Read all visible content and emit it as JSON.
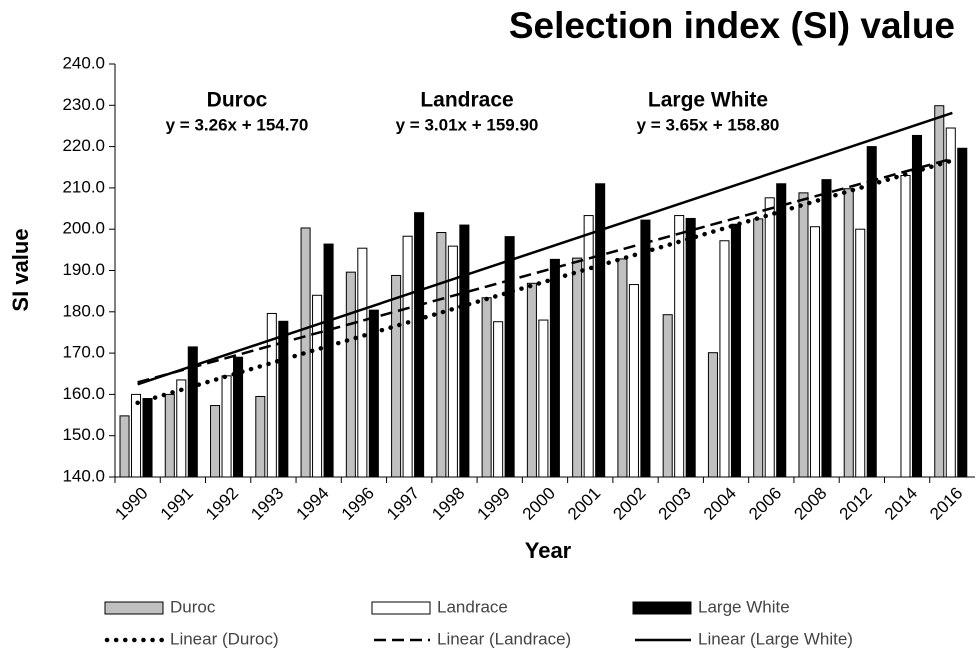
{
  "chart_data": {
    "type": "bar",
    "title": "Selection index (SI) value",
    "x_label": "Year",
    "y_label": "SI value",
    "categories": [
      "1990",
      "1991",
      "1992",
      "1993",
      "1994",
      "1996",
      "1997",
      "1998",
      "1999",
      "2000",
      "2001",
      "2002",
      "2003",
      "2004",
      "2006",
      "2008",
      "2012",
      "2014",
      "2016"
    ],
    "series": [
      {
        "name": "Duroc",
        "color": "#c0c0c0",
        "values": [
          154.8,
          160,
          157.3,
          159.5,
          200.3,
          189.6,
          188.8,
          199.2,
          183.4,
          186.9,
          193,
          192.8,
          179.3,
          170.1,
          202.5,
          208.8,
          209.8,
          null,
          229.9
        ]
      },
      {
        "name": "Landrace",
        "color": "#ffffff",
        "values": [
          160,
          163.5,
          164.5,
          179.6,
          184,
          195.4,
          198.3,
          195.9,
          177.6,
          178,
          203.3,
          186.6,
          203.3,
          197.2,
          207.6,
          200.6,
          200,
          213,
          224.5
        ]
      },
      {
        "name": "Large White",
        "color": "#000000",
        "values": [
          159,
          171.5,
          169,
          177.7,
          196.4,
          180.4,
          204,
          201,
          198.2,
          192.7,
          211,
          202.2,
          202.6,
          201.2,
          211,
          212,
          220,
          222.7,
          219.6
        ]
      }
    ],
    "trendlines": [
      {
        "name": "Linear (Duroc)",
        "slope": 3.26,
        "intercept": 154.7,
        "equation": "y = 3.26x + 154.70",
        "style": "dotted"
      },
      {
        "name": "Linear (Landrace)",
        "slope": 3.01,
        "intercept": 159.9,
        "equation": "y = 3.01x + 159.90",
        "style": "dashed"
      },
      {
        "name": "Linear (Large White)",
        "slope": 3.65,
        "intercept": 158.8,
        "equation": "y = 3.65x + 158.80",
        "style": "solid"
      }
    ],
    "ylim": [
      140,
      240
    ],
    "yticks": [
      {
        "value": 140,
        "label": "140.0"
      },
      {
        "value": 150,
        "label": "150.0"
      },
      {
        "value": 160,
        "label": "160.0"
      },
      {
        "value": 170,
        "label": "170.0"
      },
      {
        "value": 180,
        "label": "180.0"
      },
      {
        "value": 190,
        "label": "190.0"
      },
      {
        "value": 200,
        "label": "200.0"
      },
      {
        "value": 210,
        "label": "210.0"
      },
      {
        "value": 220,
        "label": "220.0"
      },
      {
        "value": 230,
        "label": "230.0"
      },
      {
        "value": 240,
        "label": "240.0"
      }
    ],
    "grid": false
  }
}
